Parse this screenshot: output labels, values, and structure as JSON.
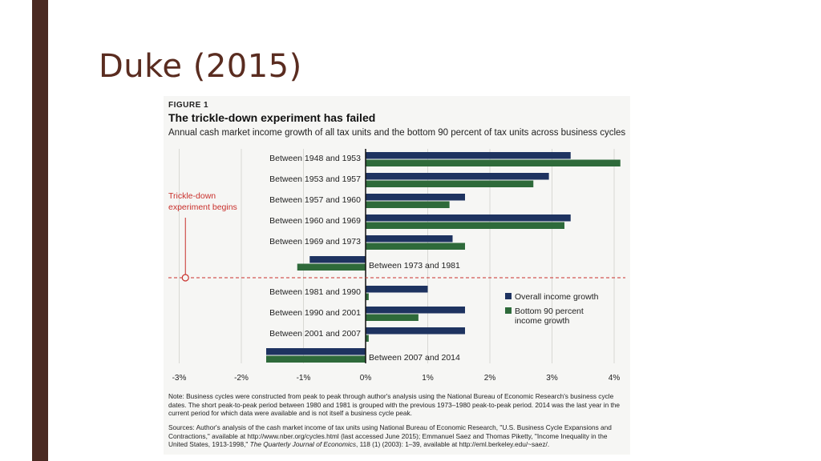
{
  "slide": {
    "title": "Duke (2015)"
  },
  "figure": {
    "label": "FIGURE 1",
    "note": "Note: Business cycles were constructed from peak to peak through author's analysis using the National Bureau of Economic Research's business cycle dates. The short peak-to-peak period between 1980 and 1981 is grouped with the previous 1973–1980 peak-to-peak period. 2014 was the last year in the current period for which data were available and is not itself a business cycle peak.",
    "sources": {
      "before": "Sources: Author's analysis of the cash market income of tax units using National Bureau of Economic Research, \"U.S. Business Cycle Expansions and Contractions,\" available at http://www.nber.org/cycles.html (last accessed June 2015); Emmanuel Saez and Thomas Piketty, \"Income Inequality in the United States, 1913-1998,\" ",
      "journal": "The Quarterly Journal of Economics",
      "after": ", 118 (1) (2003): 1–39, available at http://eml.berkeley.edu/~saez/."
    }
  },
  "colors": {
    "overall": "#1e3360",
    "bottom90": "#2e6a3a",
    "annotation": "#c9302c",
    "title": "#5a2c20"
  },
  "chart_data": {
    "type": "bar",
    "orientation": "horizontal",
    "title": "The trickle-down experiment has failed",
    "subtitle": "Annual cash market income growth of all tax units and the bottom 90 percent of tax units across business cycles",
    "categories": [
      "Between 1948 and 1953",
      "Between 1953 and 1957",
      "Between 1957 and 1960",
      "Between 1960 and 1969",
      "Between 1969 and 1973",
      "Between 1973 and 1981",
      "Between 1981 and 1990",
      "Between 1990 and 2001",
      "Between 2001 and 2007",
      "Between 2007 and 2014"
    ],
    "series": [
      {
        "name": "Overall income growth",
        "values": [
          3.3,
          2.95,
          1.6,
          3.3,
          1.4,
          -0.9,
          1.0,
          1.6,
          1.6,
          -1.6
        ]
      },
      {
        "name": "Bottom 90 percent income growth",
        "values": [
          4.1,
          2.7,
          1.35,
          3.2,
          1.6,
          -1.1,
          0.05,
          0.85,
          0.05,
          -1.6
        ]
      }
    ],
    "legend": [
      "Overall income growth",
      "Bottom 90 percent",
      "income growth"
    ],
    "xlim": [
      -3,
      4
    ],
    "x_ticks": [
      -3,
      -2,
      -1,
      0,
      1,
      2,
      3,
      4
    ],
    "x_tick_labels": [
      "-3%",
      "-2%",
      "-1%",
      "0%",
      "1%",
      "2%",
      "3%",
      "4%"
    ],
    "grid": true,
    "annotation": {
      "lines": [
        "Trickle-down",
        "experiment begins"
      ],
      "x": -2.9,
      "between": [
        "Between 1973 and 1981",
        "Between 1981 and 1990"
      ]
    }
  }
}
